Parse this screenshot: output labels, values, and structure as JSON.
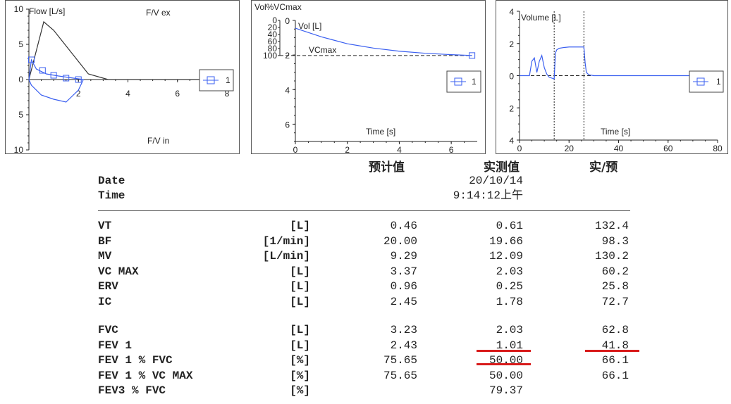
{
  "panels": [
    {
      "id": "fv",
      "ylabel": "Flow [L/s]",
      "title_top": "F/V ex",
      "title_bottom": "F/V in",
      "x_ticks": [
        "2",
        "4",
        "6",
        "8"
      ],
      "y_ticks": [
        "10",
        "5",
        "0",
        "5",
        "10"
      ],
      "legend": "1"
    },
    {
      "id": "vol_pct",
      "ylabel_left": "Vol%VCmax",
      "ylabel_inner": "Vol [L]",
      "xlabel": "Time [s]",
      "pct_ticks": [
        "0",
        "20",
        "40",
        "60",
        "80",
        "100"
      ],
      "y_ticks": [
        "0",
        "2",
        "4",
        "6"
      ],
      "x_ticks": [
        "0",
        "2",
        "4",
        "6"
      ],
      "vcmax_label": "VCmax",
      "legend": "1"
    },
    {
      "id": "volume",
      "ylabel": "Volume [L]",
      "xlabel": "Time [s]",
      "y_ticks": [
        "4",
        "2",
        "0",
        "2",
        "4"
      ],
      "x_ticks": [
        "0",
        "20",
        "40",
        "60",
        "80"
      ],
      "legend": "1"
    }
  ],
  "chart_data": [
    {
      "type": "line",
      "name": "fv",
      "xlim": [
        0,
        8
      ],
      "ylim": [
        -10,
        10
      ],
      "series": [
        {
          "name": "1",
          "x": [
            0.0,
            0.1,
            0.3,
            0.7,
            1.2,
            1.8,
            2.2,
            2.0,
            1.5,
            1.0,
            0.5,
            0.1,
            0.0
          ],
          "y": [
            0.0,
            2.8,
            1.5,
            0.8,
            0.5,
            0.2,
            0.0,
            -1.5,
            -3.2,
            -2.8,
            -2.2,
            -0.8,
            0.0
          ]
        },
        {
          "name": "predicted",
          "x": [
            0.0,
            0.6,
            1.0,
            2.4,
            3.2,
            8.0
          ],
          "y": [
            0.0,
            8.2,
            7.0,
            0.8,
            0.0,
            0.0
          ]
        }
      ],
      "markers": {
        "x": [
          0.1,
          0.55,
          1.0,
          1.5,
          2.0
        ],
        "y": [
          2.8,
          1.3,
          0.6,
          0.2,
          0.0
        ]
      }
    },
    {
      "type": "line",
      "name": "vol_pct",
      "xlim": [
        0,
        7
      ],
      "ylim": [
        0,
        7
      ],
      "vcmax": 2.03,
      "series": [
        {
          "name": "1",
          "x": [
            0.0,
            0.5,
            1,
            1.5,
            2,
            3,
            4,
            5,
            6,
            6.8
          ],
          "y": [
            0.45,
            0.7,
            0.95,
            1.15,
            1.35,
            1.6,
            1.78,
            1.9,
            1.98,
            2.03
          ]
        }
      ],
      "marker": {
        "x": 6.8,
        "y": 2.03
      }
    },
    {
      "type": "line",
      "name": "volume",
      "xlim": [
        0,
        80
      ],
      "ylim": [
        -4,
        4
      ],
      "series": [
        {
          "name": "1",
          "x": [
            0,
            4,
            5,
            6,
            7,
            8,
            9,
            10,
            11,
            12,
            14,
            14.5,
            15,
            16,
            18,
            20,
            22,
            24,
            26,
            26.5,
            27,
            28,
            30,
            40,
            50,
            60,
            70
          ],
          "y": [
            0.0,
            0.0,
            0.9,
            1.1,
            0.2,
            0.9,
            1.25,
            0.5,
            0.1,
            -0.1,
            -0.2,
            1.4,
            1.6,
            1.7,
            1.75,
            1.78,
            1.78,
            1.78,
            1.78,
            0.8,
            0.2,
            0.05,
            0.0,
            0.0,
            0.0,
            0.0,
            0.0
          ]
        }
      ],
      "vlines": [
        14,
        26
      ]
    }
  ],
  "report": {
    "col_headers": {
      "pred": "预计值",
      "meas": "实测值",
      "ratio": "实/预"
    },
    "date_label": "Date",
    "date_value": "20/10/14",
    "time_label": "Time",
    "time_value": "9:14:12上午",
    "rows1": [
      {
        "name": "VT",
        "unit": "[L]",
        "pred": "0.46",
        "meas": "0.61",
        "ratio": "132.4"
      },
      {
        "name": "BF",
        "unit": "[1/min]",
        "pred": "20.00",
        "meas": "19.66",
        "ratio": "98.3"
      },
      {
        "name": "MV",
        "unit": "[L/min]",
        "pred": "9.29",
        "meas": "12.09",
        "ratio": "130.2"
      },
      {
        "name": "VC MAX",
        "unit": "[L]",
        "pred": "3.37",
        "meas": "2.03",
        "ratio": "60.2"
      },
      {
        "name": "ERV",
        "unit": "[L]",
        "pred": "0.96",
        "meas": "0.25",
        "ratio": "25.8"
      },
      {
        "name": "IC",
        "unit": "[L]",
        "pred": "2.45",
        "meas": "1.78",
        "ratio": "72.7"
      }
    ],
    "rows2": [
      {
        "name": "FVC",
        "unit": "[L]",
        "pred": "3.23",
        "meas": "2.03",
        "ratio": "62.8"
      },
      {
        "name": "FEV 1",
        "unit": "[L]",
        "pred": "2.43",
        "meas": "1.01",
        "ratio": "41.8"
      },
      {
        "name": "FEV 1 % FVC",
        "unit": "[%]",
        "pred": "75.65",
        "meas": "50.00",
        "ratio": "66.1"
      },
      {
        "name": "FEV 1 % VC MAX",
        "unit": "[%]",
        "pred": "75.65",
        "meas": "50.00",
        "ratio": "66.1"
      },
      {
        "name": "FEV3 % FVC",
        "unit": "[%]",
        "pred": "",
        "meas": "79.37",
        "ratio": ""
      }
    ]
  },
  "colors": {
    "series": "#3a5ff0",
    "predicted": "#333333",
    "highlight": "#d81b1b"
  }
}
